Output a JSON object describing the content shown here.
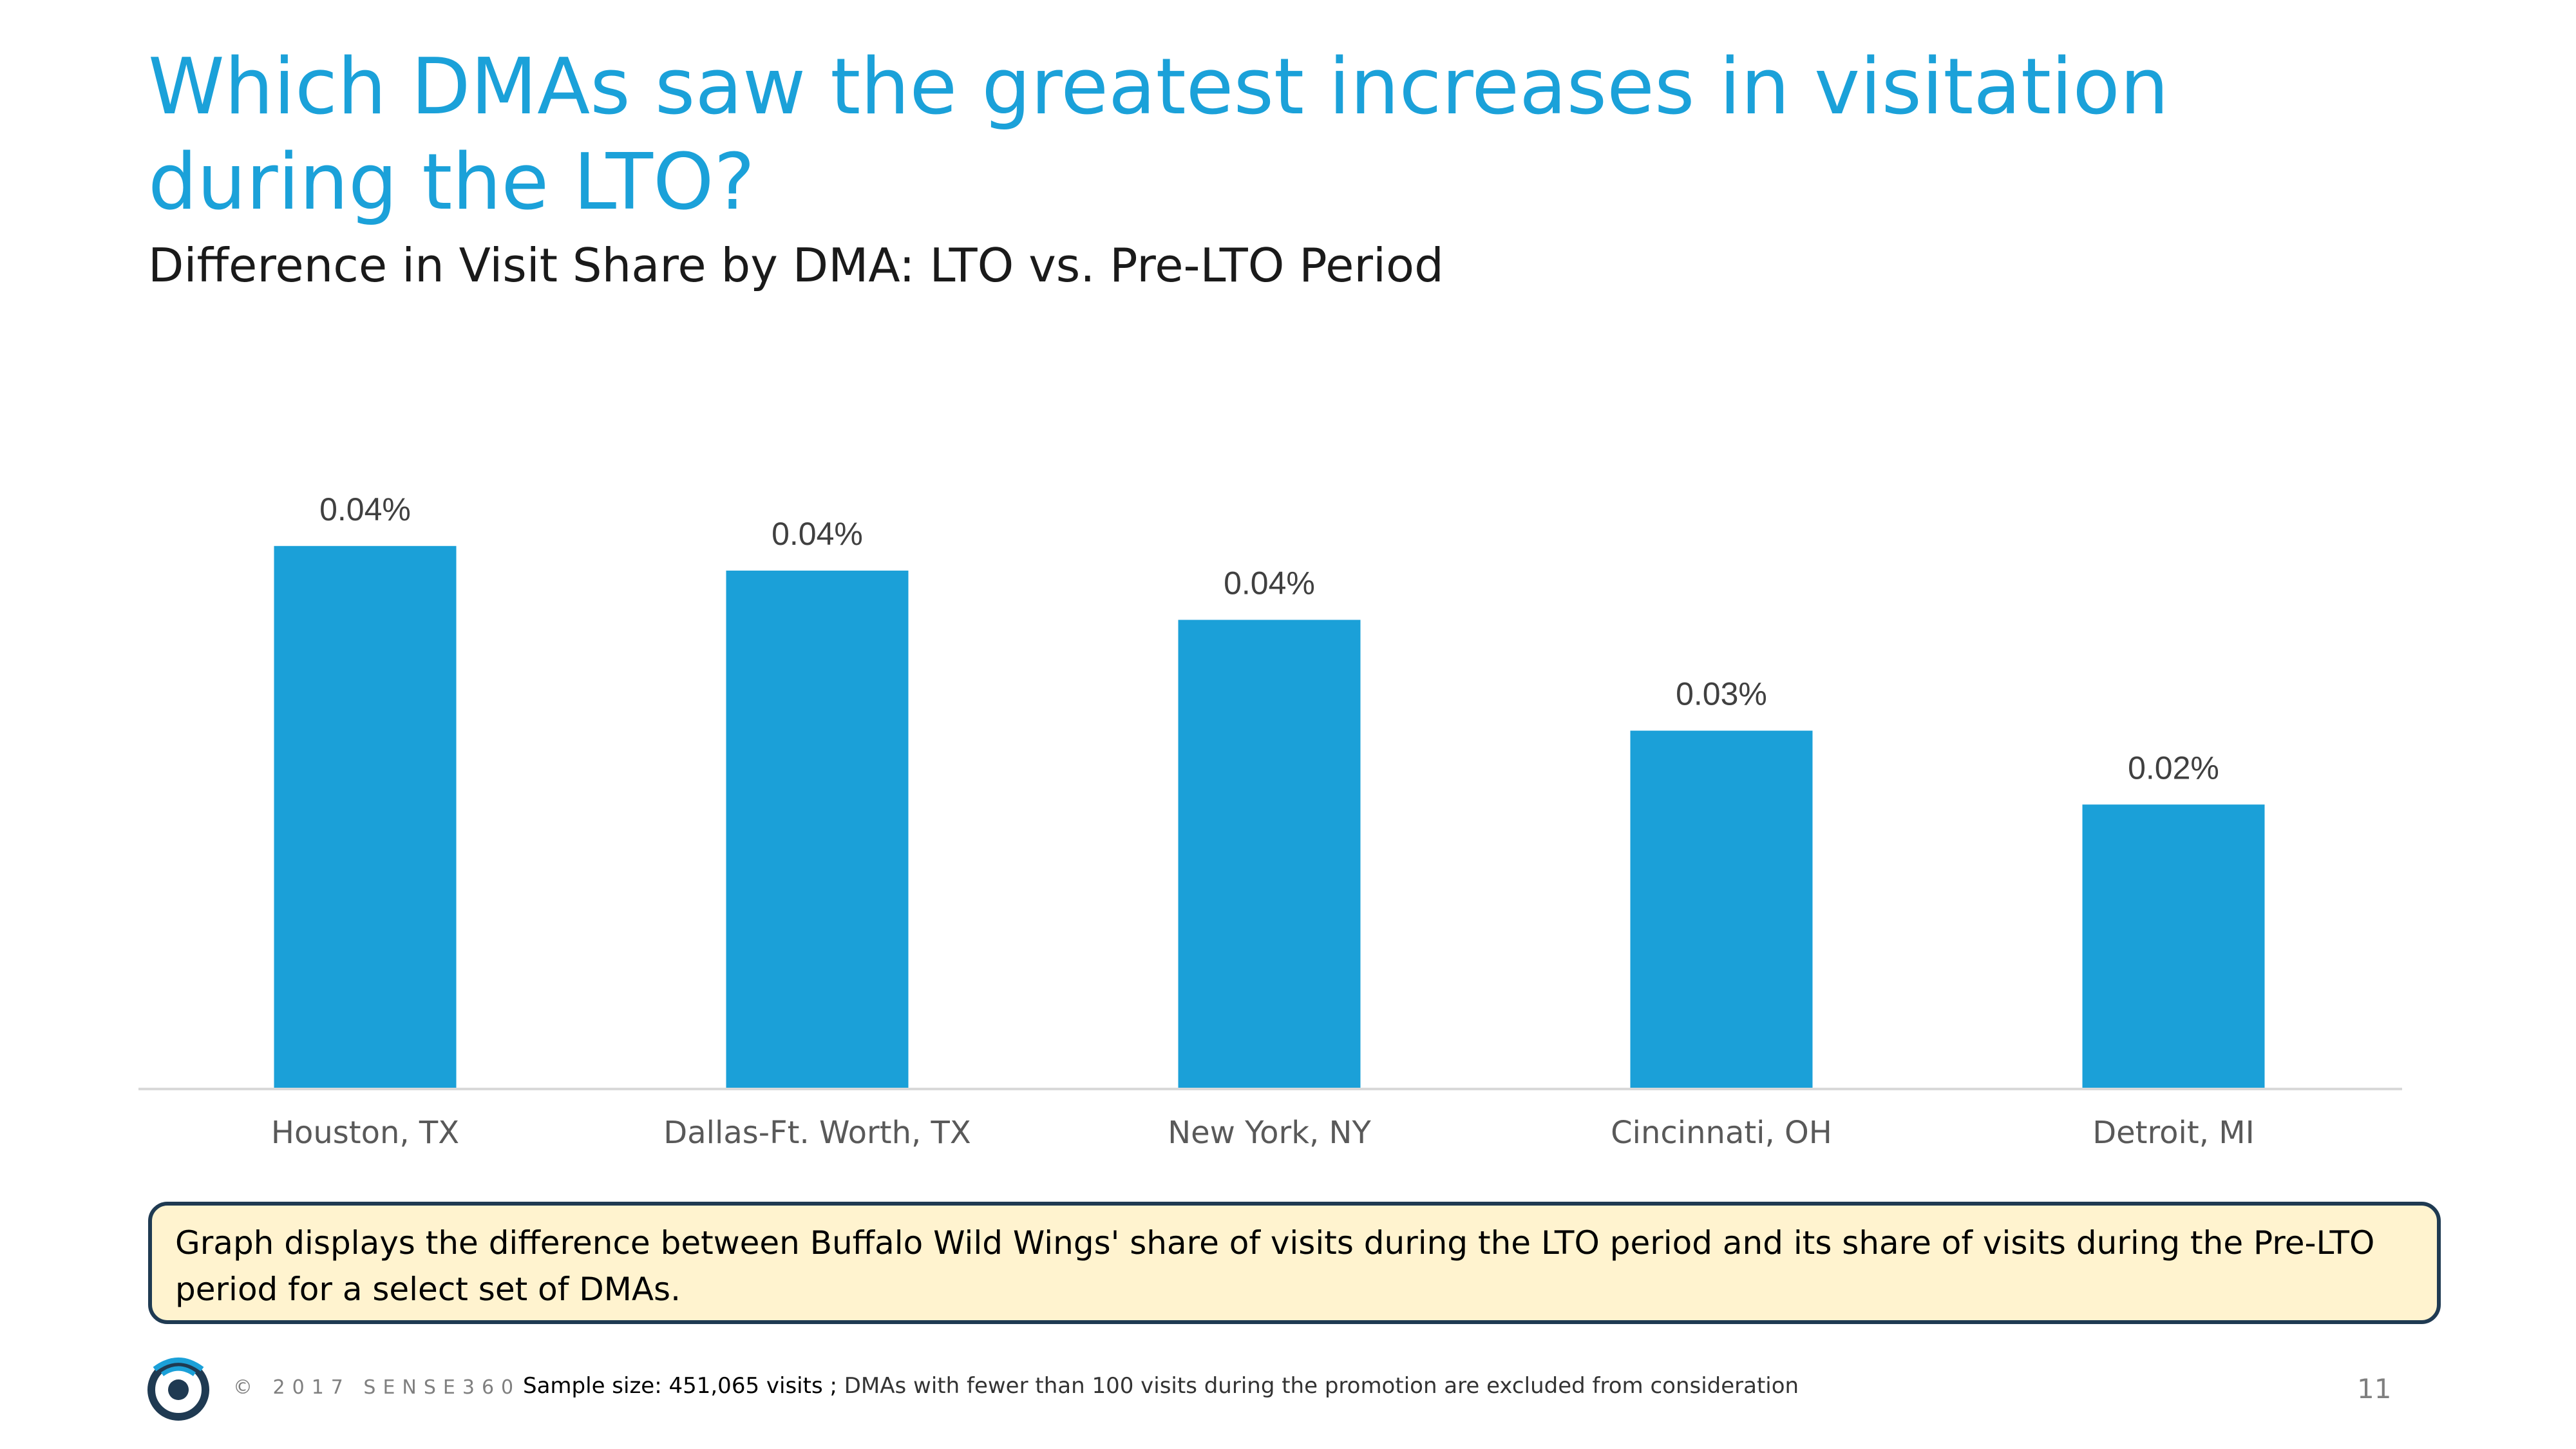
{
  "slide": {
    "title": "Which DMAs saw the greatest increases in visitation during the LTO?",
    "subtitle": "Difference in Visit Share by DMA: LTO vs. Pre-LTO Period"
  },
  "chart_data": {
    "type": "bar",
    "title": "Difference in Visit Share by DMA: LTO vs. Pre-LTO Period",
    "categories": [
      "Houston, TX",
      "Dallas-Ft. Worth, TX",
      "New York, NY",
      "Cincinnati, OH",
      "Detroit, MI"
    ],
    "values": [
      0.044,
      0.042,
      0.038,
      0.029,
      0.023
    ],
    "data_labels": [
      "0.04%",
      "0.04%",
      "0.04%",
      "0.03%",
      "0.02%"
    ],
    "xlabel": "",
    "ylabel": "",
    "ylim": [
      0,
      0.0465
    ],
    "grid": false,
    "legend": "none",
    "bar_color": "#1ba0d8"
  },
  "note": {
    "text": "Graph displays the difference between Buffalo Wild Wings' share of visits during the LTO period and its share of visits during the Pre-LTO period for a select set of DMAs."
  },
  "footer": {
    "logo_icon": "sense360-logo-icon",
    "copyright": "© 2017 SENSE360",
    "sample_size": "Sample size: 451,065 visits ;",
    "exclusion": "DMAs with fewer than 100 visits during the promotion are excluded from consideration",
    "page_number": "11"
  },
  "colors": {
    "title": "#1ba1d9",
    "bar": "#1ba0d8",
    "note_background": "#fff3cf",
    "note_border": "#1f3a52"
  }
}
